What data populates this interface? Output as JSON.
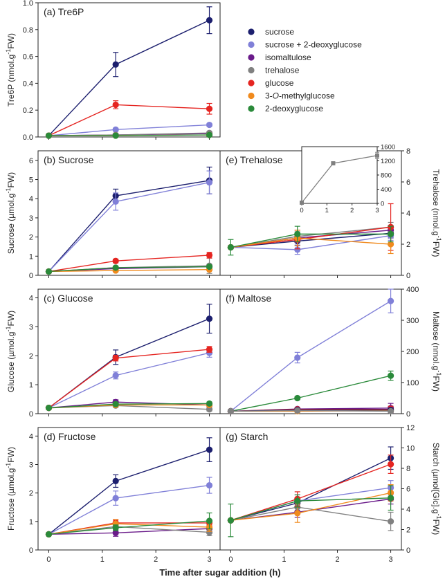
{
  "colors": {
    "sucrose": "#1c1f6e",
    "sucrose_2dg": "#8080d8",
    "isomaltulose": "#6a1b8a",
    "trehalose": "#808080",
    "glucose": "#e52521",
    "omg": "#f08a1d",
    "dg": "#2a8a3a"
  },
  "legend": [
    {
      "key": "sucrose",
      "pre": "sucrose",
      "em": "",
      "post": ""
    },
    {
      "key": "sucrose_2dg",
      "pre": "sucrose + 2-deoxyglucose",
      "em": "",
      "post": ""
    },
    {
      "key": "isomaltulose",
      "pre": "isomaltulose",
      "em": "",
      "post": ""
    },
    {
      "key": "trehalose",
      "pre": "trehalose",
      "em": "",
      "post": ""
    },
    {
      "key": "glucose",
      "pre": "glucose",
      "em": "",
      "post": ""
    },
    {
      "key": "omg",
      "pre": "3-",
      "em": "O",
      "post": "-methylglucose"
    },
    {
      "key": "dg",
      "pre": "2-deoxyglucose",
      "em": "",
      "post": ""
    }
  ],
  "x_axis_title": "Time after sugar addition (h)",
  "chart_data": [
    {
      "id": "a",
      "type": "line",
      "title": "(a) Tre6P",
      "ylabel": "Tre6P (nmol.g-1FW)",
      "x": [
        0,
        1.25,
        3
      ],
      "xlim": [
        -0.2,
        3.2
      ],
      "ylim": [
        0,
        1.0
      ],
      "yticks": [
        "0.0",
        "0.2",
        "0.4",
        "0.6",
        "0.8",
        "1.0"
      ],
      "series": [
        {
          "key": "sucrose",
          "values": [
            0.01,
            0.54,
            0.87
          ],
          "err": [
            0.005,
            0.09,
            0.1
          ]
        },
        {
          "key": "sucrose_2dg",
          "values": [
            0.01,
            0.055,
            0.09
          ],
          "err": [
            0.005,
            0.01,
            0.01
          ]
        },
        {
          "key": "isomaltulose",
          "values": [
            0.01,
            0.015,
            0.025
          ],
          "err": [
            0.005,
            0.005,
            0.005
          ]
        },
        {
          "key": "trehalose",
          "values": [
            0.01,
            0.015,
            0.03
          ],
          "err": [
            0.005,
            0.005,
            0.005
          ]
        },
        {
          "key": "glucose",
          "values": [
            0.01,
            0.24,
            0.21
          ],
          "err": [
            0.005,
            0.03,
            0.04
          ]
        },
        {
          "key": "omg",
          "values": [
            0.01,
            0.01,
            0.015
          ],
          "err": [
            0.005,
            0.005,
            0.005
          ]
        },
        {
          "key": "dg",
          "values": [
            0.01,
            0.01,
            0.015
          ],
          "err": [
            0.005,
            0.005,
            0.005
          ]
        }
      ]
    },
    {
      "id": "b",
      "type": "line",
      "title": "(b) Sucrose",
      "ylabel": "Sucrose (µmol.g-1FW)",
      "x": [
        0,
        1.25,
        3
      ],
      "xlim": [
        -0.2,
        3.2
      ],
      "ylim": [
        0,
        6.5
      ],
      "yticks": [
        "0",
        "1",
        "2",
        "3",
        "4",
        "5",
        "6"
      ],
      "series": [
        {
          "key": "sucrose",
          "values": [
            0.2,
            4.15,
            4.95
          ],
          "err": [
            0.05,
            0.35,
            0.7
          ]
        },
        {
          "key": "sucrose_2dg",
          "values": [
            0.2,
            3.85,
            4.85
          ],
          "err": [
            0.05,
            0.45,
            0.6
          ]
        },
        {
          "key": "isomaltulose",
          "values": [
            0.2,
            0.35,
            0.45
          ],
          "err": [
            0.05,
            0.05,
            0.1
          ]
        },
        {
          "key": "trehalose",
          "values": [
            0.2,
            0.4,
            0.5
          ],
          "err": [
            0.05,
            0.05,
            0.4
          ]
        },
        {
          "key": "glucose",
          "values": [
            0.2,
            0.75,
            1.05
          ],
          "err": [
            0.05,
            0.1,
            0.15
          ]
        },
        {
          "key": "omg",
          "values": [
            0.2,
            0.25,
            0.3
          ],
          "err": [
            0.05,
            0.05,
            0.05
          ]
        },
        {
          "key": "dg",
          "values": [
            0.2,
            0.4,
            0.45
          ],
          "err": [
            0.05,
            0.05,
            0.05
          ]
        }
      ]
    },
    {
      "id": "c",
      "type": "line",
      "title": "(c) Glucose",
      "ylabel": "Glucose (µmol.g-1FW)",
      "x": [
        0,
        1.25,
        3
      ],
      "xlim": [
        -0.2,
        3.2
      ],
      "ylim": [
        0,
        4.3
      ],
      "yticks": [
        "0",
        "1",
        "2",
        "3",
        "4"
      ],
      "series": [
        {
          "key": "sucrose",
          "values": [
            0.2,
            1.95,
            3.28
          ],
          "err": [
            0.03,
            0.25,
            0.5
          ]
        },
        {
          "key": "sucrose_2dg",
          "values": [
            0.2,
            1.32,
            2.1
          ],
          "err": [
            0.03,
            0.12,
            0.15
          ]
        },
        {
          "key": "isomaltulose",
          "values": [
            0.2,
            0.4,
            0.3
          ],
          "err": [
            0.03,
            0.08,
            0.06
          ]
        },
        {
          "key": "trehalose",
          "values": [
            0.2,
            0.28,
            0.15
          ],
          "err": [
            0.03,
            0.06,
            0.06
          ]
        },
        {
          "key": "glucose",
          "values": [
            0.2,
            1.92,
            2.22
          ],
          "err": [
            0.03,
            0.1,
            0.1
          ]
        },
        {
          "key": "omg",
          "values": [
            0.2,
            0.3,
            0.3
          ],
          "err": [
            0.03,
            0.05,
            0.05
          ]
        },
        {
          "key": "dg",
          "values": [
            0.2,
            0.33,
            0.35
          ],
          "err": [
            0.03,
            0.05,
            0.05
          ]
        }
      ]
    },
    {
      "id": "d",
      "type": "line",
      "title": "(d) Fructose",
      "ylabel": "Fructose (µmol.g-1FW)",
      "x": [
        0,
        1.25,
        3
      ],
      "xlim": [
        -0.2,
        3.2
      ],
      "ylim": [
        0,
        4.3
      ],
      "yticks": [
        "0",
        "1",
        "2",
        "3",
        "4"
      ],
      "series": [
        {
          "key": "sucrose",
          "values": [
            0.55,
            2.42,
            3.52
          ],
          "err": [
            0.03,
            0.22,
            0.42
          ]
        },
        {
          "key": "sucrose_2dg",
          "values": [
            0.55,
            1.82,
            2.27
          ],
          "err": [
            0.03,
            0.25,
            0.28
          ]
        },
        {
          "key": "isomaltulose",
          "values": [
            0.55,
            0.6,
            0.75
          ],
          "err": [
            0.03,
            0.12,
            0.12
          ]
        },
        {
          "key": "trehalose",
          "values": [
            0.55,
            0.82,
            0.62
          ],
          "err": [
            0.03,
            0.12,
            0.12
          ]
        },
        {
          "key": "glucose",
          "values": [
            0.55,
            0.95,
            0.95
          ],
          "err": [
            0.03,
            0.1,
            0.1
          ]
        },
        {
          "key": "omg",
          "values": [
            0.55,
            0.92,
            0.8
          ],
          "err": [
            0.03,
            0.15,
            0.15
          ]
        },
        {
          "key": "dg",
          "values": [
            0.55,
            0.78,
            1.02
          ],
          "err": [
            0.03,
            0.1,
            0.28
          ]
        }
      ]
    },
    {
      "id": "e",
      "type": "line",
      "title": "(e) Trehalose",
      "ylabel": "Trehalose (nmol.g-1FW)",
      "x": [
        0,
        1.25,
        3
      ],
      "xlim": [
        -0.2,
        3.2
      ],
      "ylim": [
        0,
        8
      ],
      "yticks": [
        "0",
        "2",
        "4",
        "6",
        "8"
      ],
      "series": [
        {
          "key": "sucrose",
          "values": [
            1.8,
            2.2,
            2.7
          ],
          "err": [
            0.05,
            0.3,
            0.3
          ]
        },
        {
          "key": "sucrose_2dg",
          "values": [
            1.8,
            1.65,
            2.55
          ],
          "err": [
            0.05,
            0.3,
            0.3
          ]
        },
        {
          "key": "isomaltulose",
          "values": [
            1.8,
            2.4,
            2.9
          ],
          "err": [
            0.05,
            0.3,
            0.3
          ]
        },
        {
          "key": "trehalose",
          "values": [
            1.8,
            2.5,
            3.1
          ],
          "err": [
            0.05,
            0.3,
            0.3
          ]
        },
        {
          "key": "glucose",
          "values": [
            1.8,
            2.3,
            3.1
          ],
          "err": [
            0.05,
            0.6,
            1.5
          ]
        },
        {
          "key": "omg",
          "values": [
            1.8,
            2.4,
            2.0
          ],
          "err": [
            0.05,
            0.5,
            0.6
          ]
        },
        {
          "key": "dg",
          "values": [
            1.8,
            2.65,
            2.65
          ],
          "err": [
            0.5,
            0.5,
            0.5
          ]
        }
      ],
      "inset": {
        "x": [
          0,
          1.25,
          3
        ],
        "xlim": [
          0,
          3
        ],
        "ylim": [
          0,
          1600
        ],
        "xticks": [
          "0",
          "1",
          "2",
          "3"
        ],
        "yticks": [
          "0",
          "400",
          "800",
          "1200",
          "1600"
        ],
        "series": [
          {
            "key": "trehalose",
            "values": [
              20,
              1130,
              1350
            ],
            "err": [
              10,
              40,
              90
            ]
          }
        ]
      }
    },
    {
      "id": "f",
      "type": "line",
      "title": "(f) Maltose",
      "ylabel": "Maltose (nmol.g-1FW)",
      "x": [
        0,
        1.25,
        3
      ],
      "xlim": [
        -0.2,
        3.2
      ],
      "ylim": [
        0,
        400
      ],
      "yticks": [
        "0",
        "100",
        "200",
        "300",
        "400"
      ],
      "series": [
        {
          "key": "sucrose_2dg",
          "values": [
            8,
            180,
            362
          ],
          "err": [
            2,
            17,
            38
          ]
        },
        {
          "key": "dg",
          "values": [
            8,
            50,
            122
          ],
          "err": [
            2,
            5,
            15
          ]
        },
        {
          "key": "isomaltulose",
          "values": [
            8,
            15,
            18
          ],
          "err": [
            2,
            4,
            15
          ]
        },
        {
          "key": "glucose",
          "values": [
            8,
            14,
            14
          ],
          "err": [
            2,
            4,
            10
          ]
        },
        {
          "key": "omg",
          "values": [
            8,
            8,
            10
          ],
          "err": [
            2,
            3,
            5
          ]
        },
        {
          "key": "sucrose",
          "values": [
            8,
            12,
            12
          ],
          "err": [
            2,
            3,
            5
          ]
        },
        {
          "key": "trehalose",
          "values": [
            8,
            10,
            8
          ],
          "err": [
            2,
            3,
            4
          ]
        }
      ]
    },
    {
      "id": "g",
      "type": "line",
      "title": "(g) Starch",
      "ylabel": "Starch (µmol[Glc].g-1FW)",
      "x": [
        0,
        1.25,
        3
      ],
      "xlim": [
        -0.2,
        3.2
      ],
      "ylim": [
        0,
        12
      ],
      "yticks": [
        "0",
        "2",
        "4",
        "6",
        "8",
        "10",
        "12"
      ],
      "series": [
        {
          "key": "sucrose",
          "values": [
            2.9,
            4.6,
            9.0
          ],
          "err": [
            0.1,
            0.5,
            1.1
          ]
        },
        {
          "key": "sucrose_2dg",
          "values": [
            2.9,
            4.8,
            6.1
          ],
          "err": [
            0.1,
            0.6,
            0.7
          ]
        },
        {
          "key": "isomaltulose",
          "values": [
            2.9,
            3.7,
            5.0
          ],
          "err": [
            0.1,
            0.5,
            0.5
          ]
        },
        {
          "key": "trehalose",
          "values": [
            2.9,
            4.2,
            2.8
          ],
          "err": [
            0.1,
            0.6,
            0.9
          ]
        },
        {
          "key": "glucose",
          "values": [
            2.9,
            5.0,
            8.4
          ],
          "err": [
            0.1,
            0.7,
            0.9
          ]
        },
        {
          "key": "omg",
          "values": [
            2.9,
            3.6,
            5.6
          ],
          "err": [
            0.1,
            0.9,
            0.8
          ]
        },
        {
          "key": "dg",
          "values": [
            2.9,
            4.8,
            5.1
          ],
          "err": [
            1.6,
            0.6,
            1.2
          ]
        }
      ]
    }
  ],
  "x_tick_labels": [
    "0",
    "1",
    "2",
    "3"
  ]
}
